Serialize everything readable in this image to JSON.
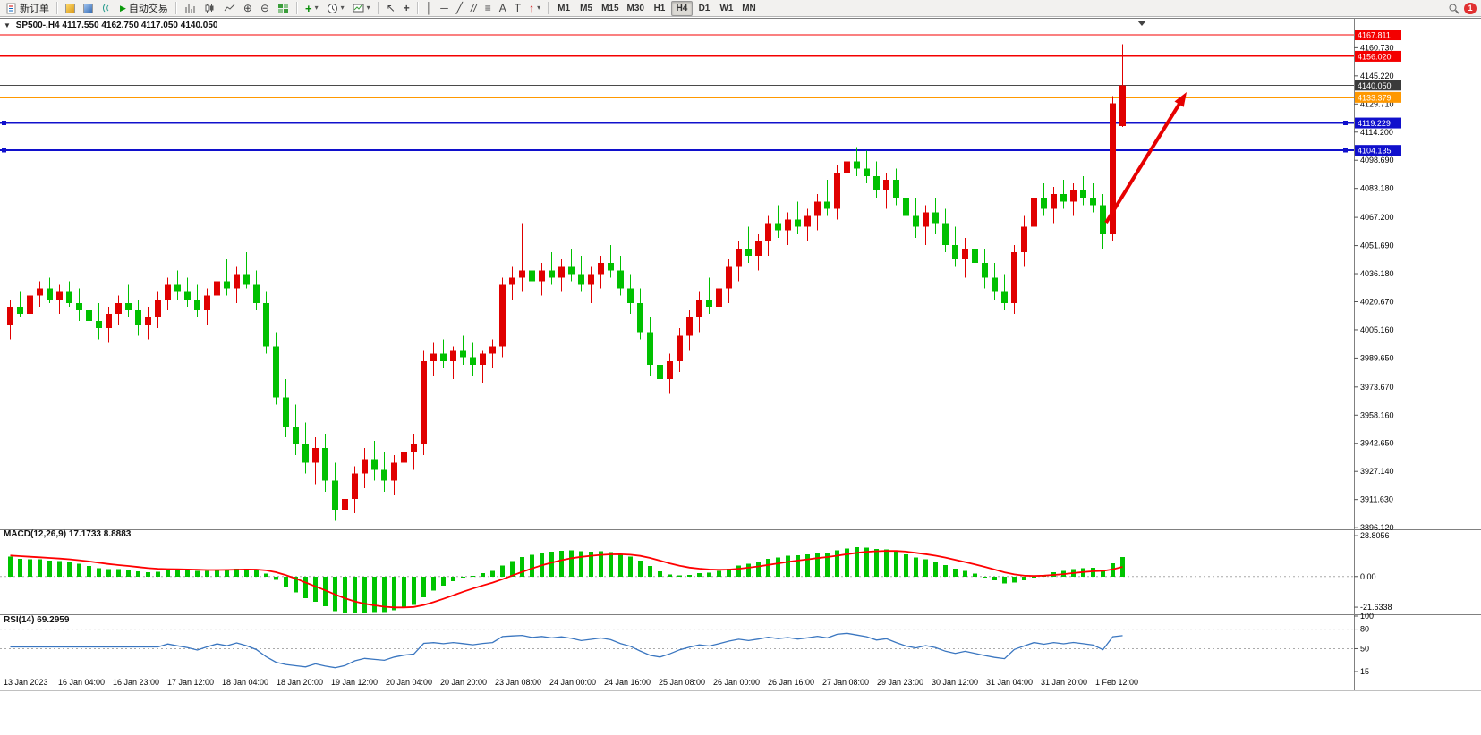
{
  "toolbar": {
    "new_order_label": "新订单",
    "auto_trading_label": "自动交易",
    "timeframes": [
      "M1",
      "M5",
      "M15",
      "M30",
      "H1",
      "H4",
      "D1",
      "W1",
      "MN"
    ],
    "active_timeframe": "H4",
    "notification_count": "1",
    "icons": {
      "autotrade_play": "▶",
      "zoom_in": "⊕",
      "zoom_out": "⊖",
      "indicators_plus": "+",
      "cursor": "↖",
      "crosshair": "+",
      "vertical_line": "│",
      "horizontal_line": "─",
      "trendline": "╱",
      "channel": "//",
      "fibonacci": "≡",
      "text": "A",
      "text_label": "T",
      "arrows": "↑",
      "caret": "▾"
    }
  },
  "chart_data": {
    "type": "candlestick",
    "header": {
      "collapse_icon": "▼",
      "symbol_period": "SP500-,H4",
      "ohlc_text": "4117.550 4162.750 4117.050 4140.050"
    },
    "colors": {
      "up": "#e00000",
      "down": "#00c000"
    },
    "ylim": [
      3895.2,
      4176.2
    ],
    "price_ticks": [
      "4160.730",
      "4145.220",
      "4129.710",
      "4114.200",
      "4098.690",
      "4083.180",
      "4067.200",
      "4051.690",
      "4036.180",
      "4020.670",
      "4005.160",
      "3989.650",
      "3973.670",
      "3958.160",
      "3942.650",
      "3927.140",
      "3911.630",
      "3896.120"
    ],
    "price_lines": [
      {
        "label": "4167.811",
        "value": 4167.811,
        "color": "#f40000",
        "width": 1.4,
        "badge": "#f40000",
        "handles": false
      },
      {
        "label": "4156.020",
        "value": 4156.02,
        "color": "#f40000",
        "width": 1.4,
        "badge": "#f40000",
        "handles": false
      },
      {
        "label": "4140.050",
        "value": 4140.05,
        "color": "#4a4a4a",
        "width": 1,
        "badge": "#3a3a3a",
        "handles": false,
        "role": "current-price"
      },
      {
        "label": "4133.379",
        "value": 4133.379,
        "color": "#ff9800",
        "width": 2,
        "badge": "#ff9800",
        "handles": false
      },
      {
        "label": "4119.229",
        "value": 4119.229,
        "color": "#1010cc",
        "width": 2,
        "badge": "#1010cc",
        "handles": true
      },
      {
        "label": "4104.135",
        "value": 4104.135,
        "color": "#1010cc",
        "width": 2,
        "badge": "#1010cc",
        "handles": true
      }
    ],
    "candles": [
      [
        4008,
        4022,
        4000,
        4018
      ],
      [
        4018,
        4026,
        4012,
        4014
      ],
      [
        4014,
        4028,
        4008,
        4024
      ],
      [
        4024,
        4032,
        4018,
        4028
      ],
      [
        4028,
        4034,
        4020,
        4022
      ],
      [
        4022,
        4030,
        4014,
        4026
      ],
      [
        4026,
        4032,
        4018,
        4020
      ],
      [
        4020,
        4028,
        4010,
        4016
      ],
      [
        4016,
        4024,
        4006,
        4010
      ],
      [
        4010,
        4020,
        4000,
        4006
      ],
      [
        4006,
        4018,
        3998,
        4014
      ],
      [
        4014,
        4024,
        4008,
        4020
      ],
      [
        4020,
        4030,
        4012,
        4016
      ],
      [
        4016,
        4022,
        4002,
        4008
      ],
      [
        4008,
        4018,
        4000,
        4012
      ],
      [
        4012,
        4026,
        4006,
        4022
      ],
      [
        4022,
        4034,
        4016,
        4030
      ],
      [
        4030,
        4038,
        4022,
        4026
      ],
      [
        4026,
        4034,
        4018,
        4022
      ],
      [
        4022,
        4030,
        4012,
        4016
      ],
      [
        4016,
        4028,
        4008,
        4024
      ],
      [
        4024,
        4050,
        4018,
        4032
      ],
      [
        4032,
        4044,
        4024,
        4028
      ],
      [
        4028,
        4040,
        4020,
        4036
      ],
      [
        4036,
        4048,
        4028,
        4030
      ],
      [
        4030,
        4038,
        4016,
        4020
      ],
      [
        4020,
        4026,
        3992,
        3996
      ],
      [
        3996,
        4004,
        3964,
        3968
      ],
      [
        3968,
        3978,
        3946,
        3952
      ],
      [
        3952,
        3964,
        3936,
        3942
      ],
      [
        3942,
        3954,
        3926,
        3932
      ],
      [
        3932,
        3946,
        3920,
        3940
      ],
      [
        3940,
        3948,
        3916,
        3922
      ],
      [
        3922,
        3932,
        3900,
        3906
      ],
      [
        3906,
        3920,
        3896,
        3912
      ],
      [
        3912,
        3930,
        3904,
        3926
      ],
      [
        3926,
        3940,
        3918,
        3934
      ],
      [
        3934,
        3944,
        3922,
        3928
      ],
      [
        3928,
        3938,
        3916,
        3922
      ],
      [
        3922,
        3936,
        3914,
        3932
      ],
      [
        3932,
        3944,
        3924,
        3938
      ],
      [
        3938,
        3948,
        3928,
        3942
      ],
      [
        3942,
        3994,
        3936,
        3988
      ],
      [
        3988,
        3998,
        3980,
        3992
      ],
      [
        3992,
        4000,
        3984,
        3988
      ],
      [
        3988,
        3996,
        3978,
        3994
      ],
      [
        3994,
        4002,
        3986,
        3990
      ],
      [
        3990,
        3998,
        3980,
        3986
      ],
      [
        3986,
        3994,
        3976,
        3992
      ],
      [
        3992,
        4000,
        3984,
        3996
      ],
      [
        3996,
        4034,
        3990,
        4030
      ],
      [
        4030,
        4040,
        4022,
        4034
      ],
      [
        4034,
        4064,
        4026,
        4038
      ],
      [
        4038,
        4046,
        4028,
        4032
      ],
      [
        4032,
        4042,
        4024,
        4038
      ],
      [
        4038,
        4048,
        4030,
        4034
      ],
      [
        4034,
        4044,
        4026,
        4040
      ],
      [
        4040,
        4050,
        4032,
        4036
      ],
      [
        4036,
        4046,
        4026,
        4030
      ],
      [
        4030,
        4040,
        4020,
        4036
      ],
      [
        4036,
        4046,
        4028,
        4042
      ],
      [
        4042,
        4052,
        4034,
        4038
      ],
      [
        4038,
        4046,
        4024,
        4028
      ],
      [
        4028,
        4036,
        4014,
        4020
      ],
      [
        4020,
        4028,
        4000,
        4004
      ],
      [
        4004,
        4012,
        3980,
        3986
      ],
      [
        3986,
        3996,
        3972,
        3978
      ],
      [
        3978,
        3992,
        3970,
        3988
      ],
      [
        3988,
        4006,
        3982,
        4002
      ],
      [
        4002,
        4016,
        3994,
        4012
      ],
      [
        4012,
        4026,
        4004,
        4022
      ],
      [
        4022,
        4034,
        4014,
        4018
      ],
      [
        4018,
        4032,
        4010,
        4028
      ],
      [
        4028,
        4044,
        4020,
        4040
      ],
      [
        4040,
        4054,
        4032,
        4050
      ],
      [
        4050,
        4062,
        4042,
        4046
      ],
      [
        4046,
        4058,
        4038,
        4054
      ],
      [
        4054,
        4068,
        4046,
        4064
      ],
      [
        4064,
        4074,
        4056,
        4060
      ],
      [
        4060,
        4070,
        4052,
        4066
      ],
      [
        4066,
        4076,
        4058,
        4062
      ],
      [
        4062,
        4072,
        4054,
        4068
      ],
      [
        4068,
        4080,
        4060,
        4076
      ],
      [
        4076,
        4088,
        4068,
        4072
      ],
      [
        4072,
        4096,
        4066,
        4092
      ],
      [
        4092,
        4102,
        4084,
        4098
      ],
      [
        4098,
        4106,
        4090,
        4094
      ],
      [
        4094,
        4104,
        4086,
        4090
      ],
      [
        4090,
        4098,
        4078,
        4082
      ],
      [
        4082,
        4092,
        4072,
        4088
      ],
      [
        4088,
        4094,
        4074,
        4078
      ],
      [
        4078,
        4086,
        4064,
        4068
      ],
      [
        4068,
        4078,
        4056,
        4062
      ],
      [
        4062,
        4074,
        4052,
        4070
      ],
      [
        4070,
        4078,
        4058,
        4064
      ],
      [
        4064,
        4072,
        4048,
        4052
      ],
      [
        4052,
        4062,
        4040,
        4044
      ],
      [
        4044,
        4056,
        4034,
        4050
      ],
      [
        4050,
        4058,
        4038,
        4042
      ],
      [
        4042,
        4050,
        4028,
        4034
      ],
      [
        4034,
        4042,
        4022,
        4026
      ],
      [
        4026,
        4036,
        4016,
        4020
      ],
      [
        4020,
        4052,
        4014,
        4048
      ],
      [
        4048,
        4068,
        4040,
        4062
      ],
      [
        4062,
        4082,
        4054,
        4078
      ],
      [
        4078,
        4086,
        4068,
        4072
      ],
      [
        4072,
        4084,
        4064,
        4080
      ],
      [
        4080,
        4088,
        4072,
        4076
      ],
      [
        4076,
        4086,
        4068,
        4082
      ],
      [
        4082,
        4090,
        4074,
        4078
      ],
      [
        4078,
        4086,
        4070,
        4074
      ],
      [
        4074,
        4080,
        4050,
        4058
      ],
      [
        4058,
        4134,
        4054,
        4130
      ],
      [
        4117.55,
        4162.75,
        4117.05,
        4140.05
      ]
    ],
    "time_labels": [
      "13 Jan 2023",
      "16 Jan 04:00",
      "16 Jan 23:00",
      "17 Jan 12:00",
      "18 Jan 04:00",
      "18 Jan 20:00",
      "19 Jan 12:00",
      "20 Jan 04:00",
      "20 Jan 20:00",
      "23 Jan 08:00",
      "24 Jan 00:00",
      "24 Jan 16:00",
      "25 Jan 08:00",
      "26 Jan 00:00",
      "26 Jan 16:00",
      "27 Jan 08:00",
      "29 Jan 23:00",
      "30 Jan 12:00",
      "31 Jan 04:00",
      "31 Jan 20:00",
      "1 Feb 12:00"
    ],
    "indicators": {
      "macd": {
        "label": "MACD(12,26,9)",
        "values_text": "17.1733 8.8883",
        "fast": 12,
        "slow": 26,
        "signal": 9,
        "axis_labels": [
          "28.8056",
          "0.00",
          "-21.6338"
        ],
        "range": [
          -26,
          32
        ],
        "histogram_color": "#00c400",
        "signal_color": "#ff0000"
      },
      "rsi": {
        "label": "RSI(14)",
        "value_text": "69.2959",
        "period": 14,
        "axis_labels": [
          "100",
          "80",
          "50",
          "15"
        ],
        "levels": [
          80,
          50
        ],
        "range": [
          15,
          100
        ],
        "line_color": "#3a76c0"
      }
    },
    "annotations": [
      {
        "type": "arrow",
        "color": "#e60000",
        "tail": [
          1236,
          230
        ],
        "head": [
          1326,
          84
        ]
      }
    ],
    "shift_marker_x": 1276
  }
}
